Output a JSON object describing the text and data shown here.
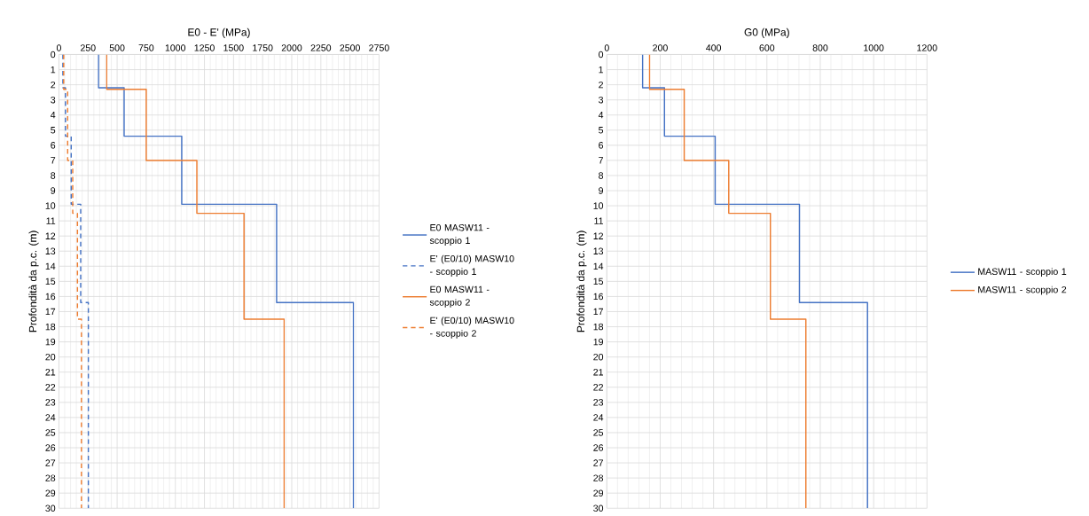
{
  "chart_data": [
    {
      "type": "line",
      "xlabel": "E0 - E' (MPa)",
      "ylabel": "Profondità da p.c. (m)",
      "xlim": [
        0,
        2750
      ],
      "xticks": [
        0,
        250,
        500,
        750,
        1000,
        1250,
        1500,
        1750,
        2000,
        2250,
        2500,
        2750
      ],
      "ylim": [
        30,
        0
      ],
      "yticks": [
        0,
        1,
        2,
        3,
        4,
        5,
        6,
        7,
        8,
        9,
        10,
        11,
        12,
        13,
        14,
        15,
        16,
        17,
        18,
        19,
        20,
        21,
        22,
        23,
        24,
        25,
        26,
        27,
        28,
        29,
        30
      ],
      "grid": true,
      "legend": "right",
      "series": [
        {
          "name": "E0 MASW11 - scoppio 1",
          "color": "#4472c4",
          "line_style": "solid",
          "x": [
            340,
            340,
            560,
            560,
            1055,
            1055,
            1870,
            1870,
            2530,
            2530
          ],
          "values": [
            0,
            2.2,
            2.2,
            5.4,
            5.4,
            9.9,
            9.9,
            16.4,
            16.4,
            30
          ]
        },
        {
          "name": "E' (E0/10) MASW10 - scoppio 1",
          "color": "#4472c4",
          "line_style": "dashed",
          "x": [
            34,
            34,
            56,
            56,
            105.5,
            105.5,
            187,
            187,
            253,
            253
          ],
          "values": [
            0,
            2.2,
            2.2,
            5.4,
            5.4,
            9.9,
            9.9,
            16.4,
            16.4,
            30
          ]
        },
        {
          "name": "E0 MASW11 - scoppio 2",
          "color": "#ed7d31",
          "line_style": "solid",
          "x": [
            410,
            410,
            750,
            750,
            1185,
            1185,
            1590,
            1590,
            1935,
            1935
          ],
          "values": [
            0,
            2.3,
            2.3,
            7.0,
            7.0,
            10.5,
            10.5,
            17.5,
            17.5,
            30
          ]
        },
        {
          "name": "E' (E0/10) MASW10 - scoppio 2",
          "color": "#ed7d31",
          "line_style": "dashed",
          "x": [
            41,
            41,
            75,
            75,
            118.5,
            118.5,
            159,
            159,
            193.5,
            193.5
          ],
          "values": [
            0,
            2.3,
            2.3,
            7.0,
            7.0,
            10.5,
            10.5,
            17.5,
            17.5,
            30
          ]
        }
      ]
    },
    {
      "type": "line",
      "xlabel": "G0 (MPa)",
      "ylabel": "Profondità da p.c. (m)",
      "xlim": [
        0,
        1200
      ],
      "xticks": [
        0,
        200,
        400,
        600,
        800,
        1000,
        1200
      ],
      "ylim": [
        30,
        0
      ],
      "yticks": [
        0,
        1,
        2,
        3,
        4,
        5,
        6,
        7,
        8,
        9,
        10,
        11,
        12,
        13,
        14,
        15,
        16,
        17,
        18,
        19,
        20,
        21,
        22,
        23,
        24,
        25,
        26,
        27,
        28,
        29,
        30
      ],
      "grid": true,
      "legend": "right",
      "series": [
        {
          "name": "MASW11 - scoppio 1",
          "color": "#4472c4",
          "line_style": "solid",
          "x": [
            134,
            134,
            216,
            216,
            406,
            406,
            722,
            722,
            977,
            977
          ],
          "values": [
            0,
            2.2,
            2.2,
            5.4,
            5.4,
            9.9,
            9.9,
            16.4,
            16.4,
            30
          ]
        },
        {
          "name": "MASW11 - scoppio 2",
          "color": "#ed7d31",
          "line_style": "solid",
          "x": [
            160,
            160,
            290,
            290,
            457,
            457,
            613,
            613,
            746,
            746
          ],
          "values": [
            0,
            2.3,
            2.3,
            7.0,
            7.0,
            10.5,
            10.5,
            17.5,
            17.5,
            30
          ]
        }
      ]
    }
  ]
}
